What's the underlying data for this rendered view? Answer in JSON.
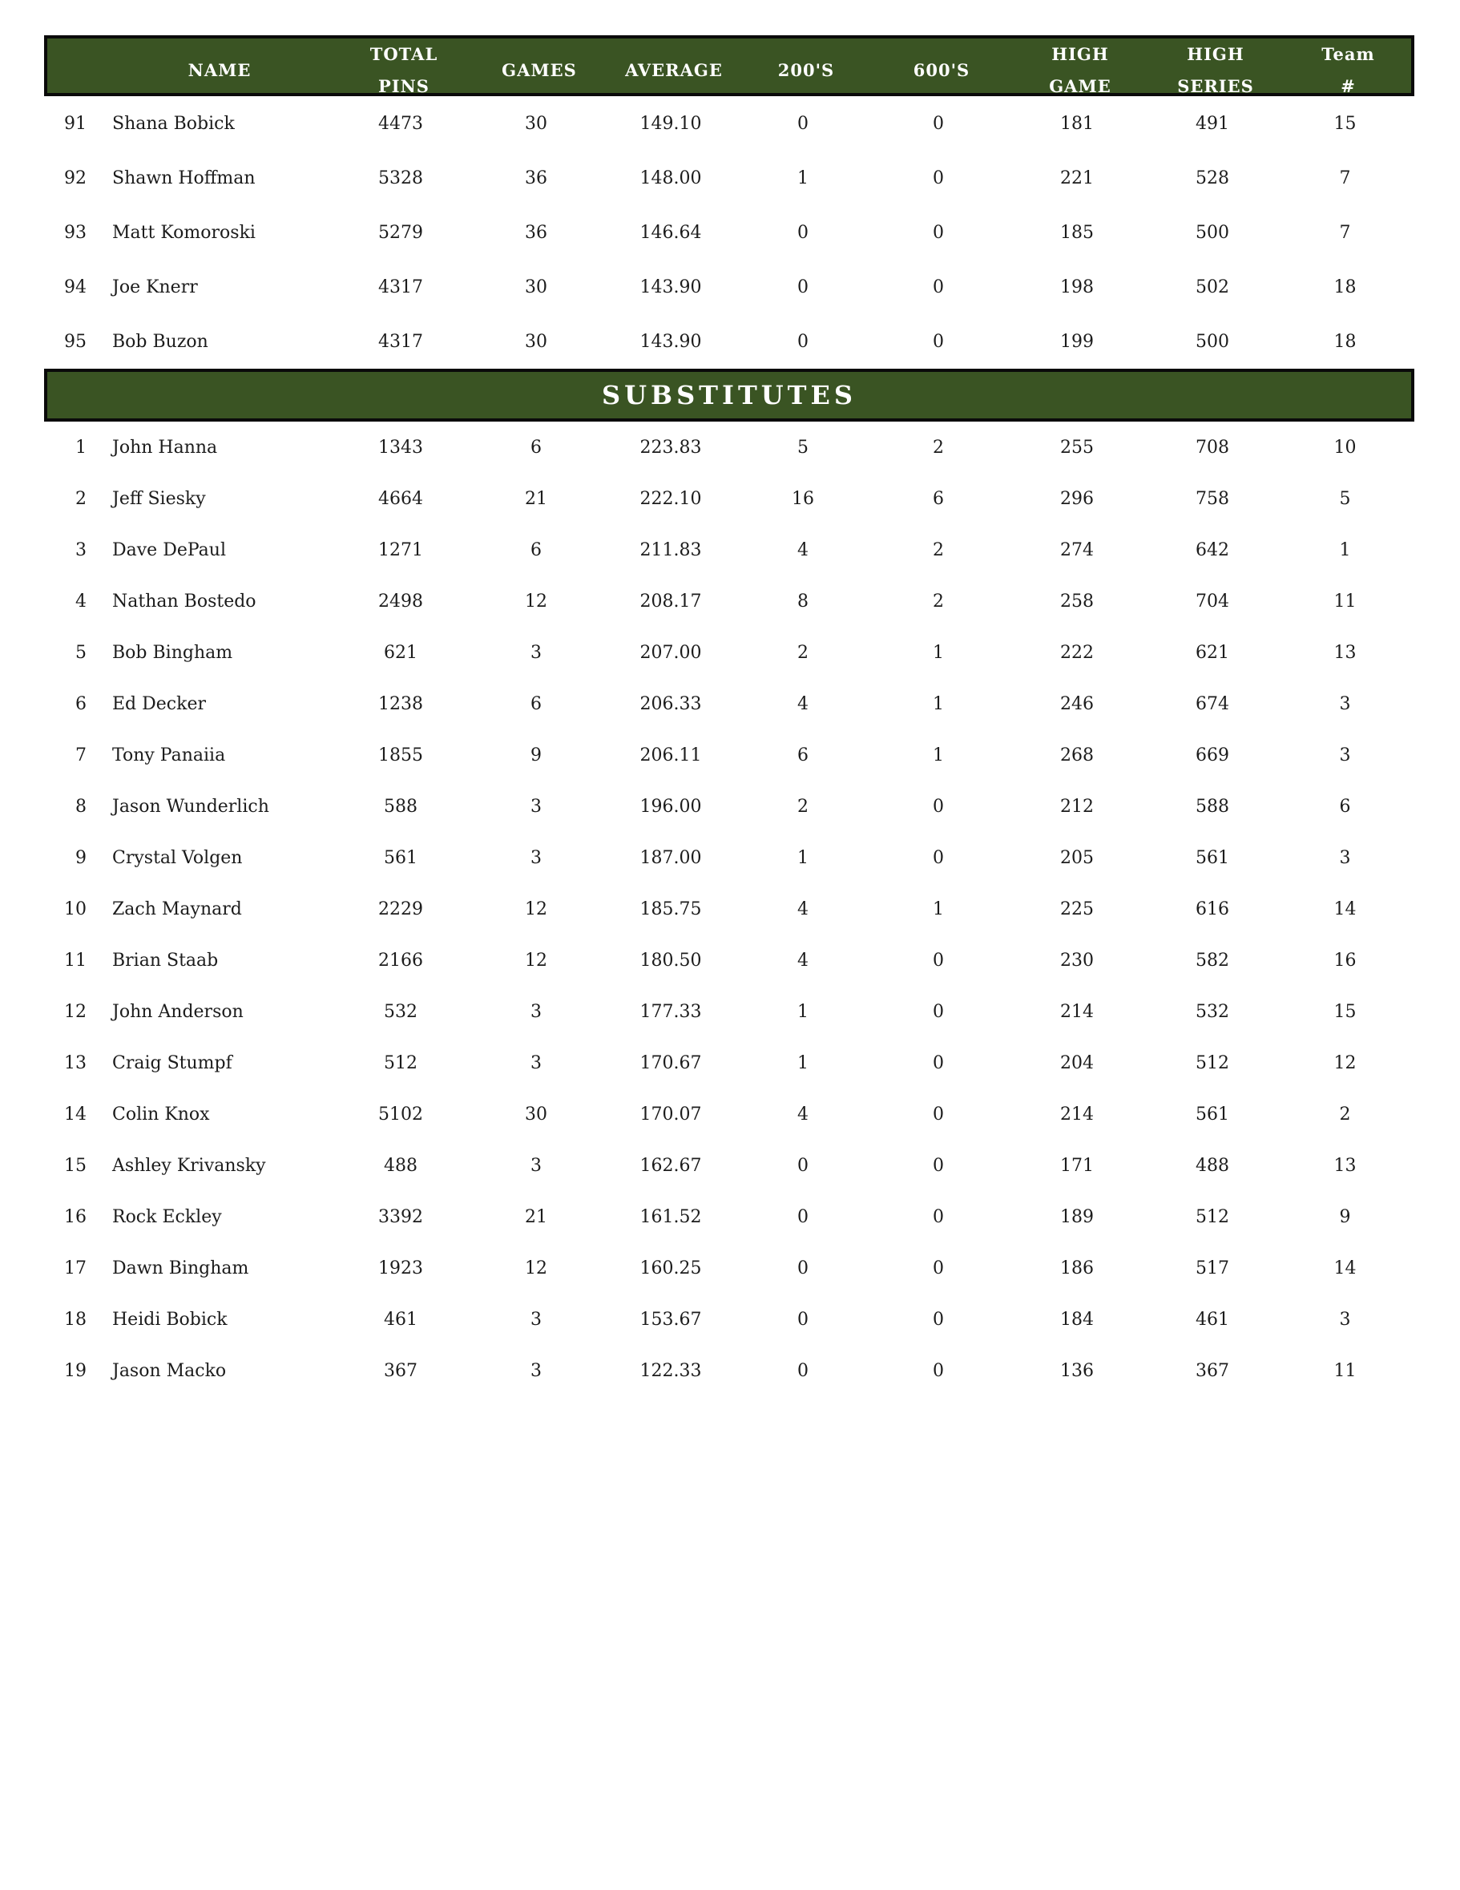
{
  "theme": {
    "band_green": "#3A5423",
    "band_border": "#0a0a0a",
    "band_text": "#ffffff",
    "row_text": "#1c1c1c",
    "page_background": "#ffffff"
  },
  "header": {
    "columns": [
      {
        "line1": "NAME"
      },
      {
        "line1": "TOTAL",
        "line2": "PINS"
      },
      {
        "line1": "GAMES"
      },
      {
        "line1": "AVERAGE"
      },
      {
        "line1": "200'S"
      },
      {
        "line1": "600'S"
      },
      {
        "line1": "HIGH",
        "line2": "GAME"
      },
      {
        "line1": "HIGH",
        "line2": "SERIES"
      },
      {
        "line1": "Team",
        "line2": "#"
      }
    ]
  },
  "substitutes_banner": {
    "label": "SUBSTITUTES"
  },
  "main_rows": [
    [
      "91",
      "Shana Bobick",
      "4473",
      "30",
      "149.10",
      "0",
      "0",
      "181",
      "491",
      "15"
    ],
    [
      "92",
      "Shawn Hoffman",
      "5328",
      "36",
      "148.00",
      "1",
      "0",
      "221",
      "528",
      "7"
    ],
    [
      "93",
      "Matt Komoroski",
      "5279",
      "36",
      "146.64",
      "0",
      "0",
      "185",
      "500",
      "7"
    ],
    [
      "94",
      "Joe Knerr",
      "4317",
      "30",
      "143.90",
      "0",
      "0",
      "198",
      "502",
      "18"
    ],
    [
      "95",
      "Bob Buzon",
      "4317",
      "30",
      "143.90",
      "0",
      "0",
      "199",
      "500",
      "18"
    ]
  ],
  "sub_rows": [
    [
      "1",
      "John Hanna",
      "1343",
      "6",
      "223.83",
      "5",
      "2",
      "255",
      "708",
      "10"
    ],
    [
      "2",
      "Jeff Siesky",
      "4664",
      "21",
      "222.10",
      "16",
      "6",
      "296",
      "758",
      "5"
    ],
    [
      "3",
      "Dave DePaul",
      "1271",
      "6",
      "211.83",
      "4",
      "2",
      "274",
      "642",
      "1"
    ],
    [
      "4",
      "Nathan Bostedo",
      "2498",
      "12",
      "208.17",
      "8",
      "2",
      "258",
      "704",
      "11"
    ],
    [
      "5",
      "Bob Bingham",
      "621",
      "3",
      "207.00",
      "2",
      "1",
      "222",
      "621",
      "13"
    ],
    [
      "6",
      "Ed Decker",
      "1238",
      "6",
      "206.33",
      "4",
      "1",
      "246",
      "674",
      "3"
    ],
    [
      "7",
      "Tony Panaiia",
      "1855",
      "9",
      "206.11",
      "6",
      "1",
      "268",
      "669",
      "3"
    ],
    [
      "8",
      "Jason Wunderlich",
      "588",
      "3",
      "196.00",
      "2",
      "0",
      "212",
      "588",
      "6"
    ],
    [
      "9",
      "Crystal Volgen",
      "561",
      "3",
      "187.00",
      "1",
      "0",
      "205",
      "561",
      "3"
    ],
    [
      "10",
      "Zach Maynard",
      "2229",
      "12",
      "185.75",
      "4",
      "1",
      "225",
      "616",
      "14"
    ],
    [
      "11",
      "Brian Staab",
      "2166",
      "12",
      "180.50",
      "4",
      "0",
      "230",
      "582",
      "16"
    ],
    [
      "12",
      "John Anderson",
      "532",
      "3",
      "177.33",
      "1",
      "0",
      "214",
      "532",
      "15"
    ],
    [
      "13",
      "Craig Stumpf",
      "512",
      "3",
      "170.67",
      "1",
      "0",
      "204",
      "512",
      "12"
    ],
    [
      "14",
      "Colin Knox",
      "5102",
      "30",
      "170.07",
      "4",
      "0",
      "214",
      "561",
      "2"
    ],
    [
      "15",
      "Ashley Krivansky",
      "488",
      "3",
      "162.67",
      "0",
      "0",
      "171",
      "488",
      "13"
    ],
    [
      "16",
      "Rock Eckley",
      "3392",
      "21",
      "161.52",
      "0",
      "0",
      "189",
      "512",
      "9"
    ],
    [
      "17",
      "Dawn Bingham",
      "1923",
      "12",
      "160.25",
      "0",
      "0",
      "186",
      "517",
      "14"
    ],
    [
      "18",
      "Heidi Bobick",
      "461",
      "3",
      "153.67",
      "0",
      "0",
      "184",
      "461",
      "3"
    ],
    [
      "19",
      "Jason Macko",
      "367",
      "3",
      "122.33",
      "0",
      "0",
      "136",
      "367",
      "11"
    ]
  ]
}
